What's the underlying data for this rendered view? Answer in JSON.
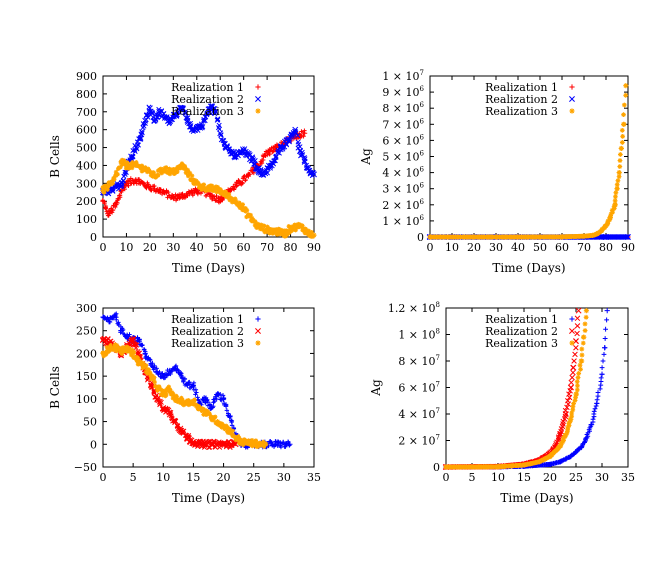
{
  "chart_data": [
    {
      "type": "scatter",
      "xlabel": "Time (Days)",
      "ylabel": "B Cells",
      "xlim": [
        0,
        90
      ],
      "ylim": [
        0,
        900
      ],
      "xticks": [
        "0",
        "10",
        "20",
        "30",
        "40",
        "50",
        "60",
        "70",
        "80",
        "90"
      ],
      "yticks": [
        "0",
        "100",
        "200",
        "300",
        "400",
        "500",
        "600",
        "700",
        "800",
        "900"
      ],
      "legend_position": "top-right",
      "series": [
        {
          "name": "Realization 1",
          "color": "#ff0000",
          "marker": "plus",
          "x": [
            0,
            2,
            4,
            6,
            8,
            10,
            14,
            18,
            22,
            26,
            30,
            34,
            38,
            42,
            46,
            50,
            54,
            58,
            62,
            66,
            70,
            74,
            78,
            82,
            86
          ],
          "y": [
            200,
            130,
            150,
            190,
            260,
            300,
            320,
            290,
            270,
            250,
            220,
            230,
            250,
            260,
            230,
            210,
            260,
            300,
            340,
            400,
            470,
            500,
            530,
            560,
            580
          ]
        },
        {
          "name": "Realization 2",
          "color": "#0000ff",
          "marker": "cross",
          "x": [
            0,
            4,
            8,
            12,
            16,
            18,
            20,
            22,
            24,
            28,
            32,
            34,
            36,
            38,
            42,
            46,
            48,
            50,
            52,
            56,
            60,
            64,
            66,
            68,
            72,
            76,
            80,
            82,
            84,
            86,
            88,
            90
          ],
          "y": [
            250,
            260,
            300,
            450,
            550,
            650,
            720,
            650,
            700,
            650,
            700,
            720,
            650,
            600,
            620,
            730,
            700,
            580,
            520,
            450,
            480,
            430,
            380,
            350,
            400,
            500,
            560,
            600,
            480,
            420,
            370,
            350
          ]
        },
        {
          "name": "Realization 3",
          "color": "#ffa500",
          "marker": "star",
          "x": [
            0,
            4,
            8,
            10,
            14,
            18,
            22,
            26,
            30,
            34,
            38,
            42,
            46,
            50,
            54,
            58,
            62,
            66,
            70,
            74,
            78,
            80,
            84,
            88,
            90
          ],
          "y": [
            260,
            300,
            420,
            400,
            400,
            380,
            340,
            380,
            360,
            400,
            320,
            280,
            270,
            260,
            220,
            190,
            120,
            60,
            40,
            30,
            20,
            50,
            60,
            20,
            10
          ]
        }
      ]
    },
    {
      "type": "scatter",
      "xlabel": "Time (Days)",
      "ylabel": "Ag",
      "xlim": [
        0,
        90
      ],
      "ylim": [
        0,
        10000000
      ],
      "xticks": [
        "0",
        "10",
        "20",
        "30",
        "40",
        "50",
        "60",
        "70",
        "80",
        "90"
      ],
      "yticks": [
        "0",
        "1 × 10^6",
        "2 × 10^6",
        "3 × 10^6",
        "4 × 10^6",
        "5 × 10^6",
        "6 × 10^6",
        "7 × 10^6",
        "8 × 10^6",
        "9 × 10^6",
        "1 × 10^7"
      ],
      "legend_position": "top-right",
      "series": [
        {
          "name": "Realization 1",
          "color": "#ff0000",
          "marker": "plus",
          "x": [
            0,
            10,
            20,
            30,
            40,
            50,
            60,
            70,
            80,
            90
          ],
          "y": [
            0,
            0,
            0,
            0,
            0,
            0,
            0,
            0,
            0,
            0
          ]
        },
        {
          "name": "Realization 2",
          "color": "#0000ff",
          "marker": "cross",
          "x": [
            0,
            10,
            20,
            30,
            40,
            50,
            60,
            70,
            80,
            90
          ],
          "y": [
            0,
            0,
            0,
            0,
            0,
            0,
            0,
            0,
            0,
            0
          ]
        },
        {
          "name": "Realization 3",
          "color": "#ffa500",
          "marker": "star",
          "x": [
            0,
            20,
            40,
            60,
            70,
            74,
            76,
            78,
            80,
            82,
            84,
            85,
            86,
            87,
            88,
            89
          ],
          "y": [
            0,
            0,
            0,
            10000,
            50000,
            100000,
            200000,
            400000,
            700000,
            1200000,
            2000000,
            3000000,
            4000000,
            5500000,
            7000000,
            9400000
          ]
        }
      ]
    },
    {
      "type": "scatter",
      "xlabel": "Time (Days)",
      "ylabel": "B Cells",
      "xlim": [
        0,
        35
      ],
      "ylim": [
        -50,
        300
      ],
      "xticks": [
        "0",
        "5",
        "10",
        "15",
        "20",
        "25",
        "30",
        "35"
      ],
      "yticks": [
        "−50",
        "0",
        "50",
        "100",
        "150",
        "200",
        "250",
        "300"
      ],
      "legend_position": "top-right",
      "series": [
        {
          "name": "Realization 1",
          "color": "#0000ff",
          "marker": "plus",
          "x": [
            0,
            1,
            2,
            3,
            4,
            5,
            6,
            7,
            8,
            9,
            10,
            11,
            12,
            13,
            14,
            15,
            16,
            17,
            18,
            19,
            20,
            21,
            22,
            23,
            25,
            27,
            29,
            31
          ],
          "y": [
            280,
            270,
            285,
            250,
            240,
            230,
            230,
            200,
            175,
            160,
            150,
            160,
            170,
            150,
            130,
            130,
            90,
            100,
            80,
            110,
            100,
            60,
            20,
            0,
            0,
            0,
            0,
            0
          ]
        },
        {
          "name": "Realization 2",
          "color": "#ff0000",
          "marker": "cross",
          "x": [
            0,
            1,
            2,
            3,
            4,
            5,
            6,
            7,
            8,
            9,
            10,
            11,
            12,
            13,
            14,
            15,
            16,
            18,
            20,
            22
          ],
          "y": [
            230,
            225,
            210,
            200,
            215,
            230,
            200,
            160,
            130,
            100,
            80,
            70,
            50,
            30,
            15,
            5,
            0,
            0,
            0,
            0
          ]
        },
        {
          "name": "Realization 3",
          "color": "#ffa500",
          "marker": "star",
          "x": [
            0,
            1,
            2,
            3,
            4,
            5,
            6,
            7,
            8,
            9,
            10,
            11,
            12,
            13,
            14,
            15,
            16,
            17,
            18,
            19,
            20,
            21,
            22,
            23,
            24,
            25,
            26,
            27
          ],
          "y": [
            200,
            210,
            215,
            205,
            210,
            200,
            180,
            170,
            150,
            125,
            110,
            120,
            100,
            95,
            90,
            95,
            80,
            70,
            60,
            50,
            40,
            30,
            15,
            5,
            3,
            2,
            1,
            0
          ]
        }
      ]
    },
    {
      "type": "scatter",
      "xlabel": "Time (Days)",
      "ylabel": "Ag",
      "xlim": [
        0,
        35
      ],
      "ylim": [
        0,
        120000000
      ],
      "xticks": [
        "0",
        "5",
        "10",
        "15",
        "20",
        "25",
        "30",
        "35"
      ],
      "yticks": [
        "0",
        "2 × 10^7",
        "4 × 10^7",
        "6 × 10^7",
        "8 × 10^7",
        "1 × 10^8",
        "1.2 × 10^8"
      ],
      "legend_position": "top-right",
      "series": [
        {
          "name": "Realization 1",
          "color": "#0000ff",
          "marker": "plus",
          "x": [
            0,
            10,
            15,
            20,
            22,
            24,
            26,
            27,
            28,
            29,
            30,
            30.5,
            31
          ],
          "y": [
            0,
            100000,
            500000,
            2000000,
            4000000,
            8000000,
            15000000,
            22000000,
            32000000,
            48000000,
            70000000,
            90000000,
            118000000
          ]
        },
        {
          "name": "Realization 2",
          "color": "#ff0000",
          "marker": "cross",
          "x": [
            0,
            10,
            15,
            18,
            20,
            21,
            22,
            23,
            24,
            24.5,
            25,
            25.5
          ],
          "y": [
            0,
            300000,
            2000000,
            5000000,
            10000000,
            15000000,
            25000000,
            40000000,
            60000000,
            75000000,
            95000000,
            118000000
          ]
        },
        {
          "name": "Realization 3",
          "color": "#ffa500",
          "marker": "star",
          "x": [
            0,
            10,
            15,
            18,
            20,
            22,
            23,
            24,
            25,
            26,
            26.5,
            27
          ],
          "y": [
            0,
            200000,
            1500000,
            4000000,
            8000000,
            16000000,
            24000000,
            36000000,
            55000000,
            80000000,
            98000000,
            118000000
          ]
        }
      ]
    }
  ]
}
